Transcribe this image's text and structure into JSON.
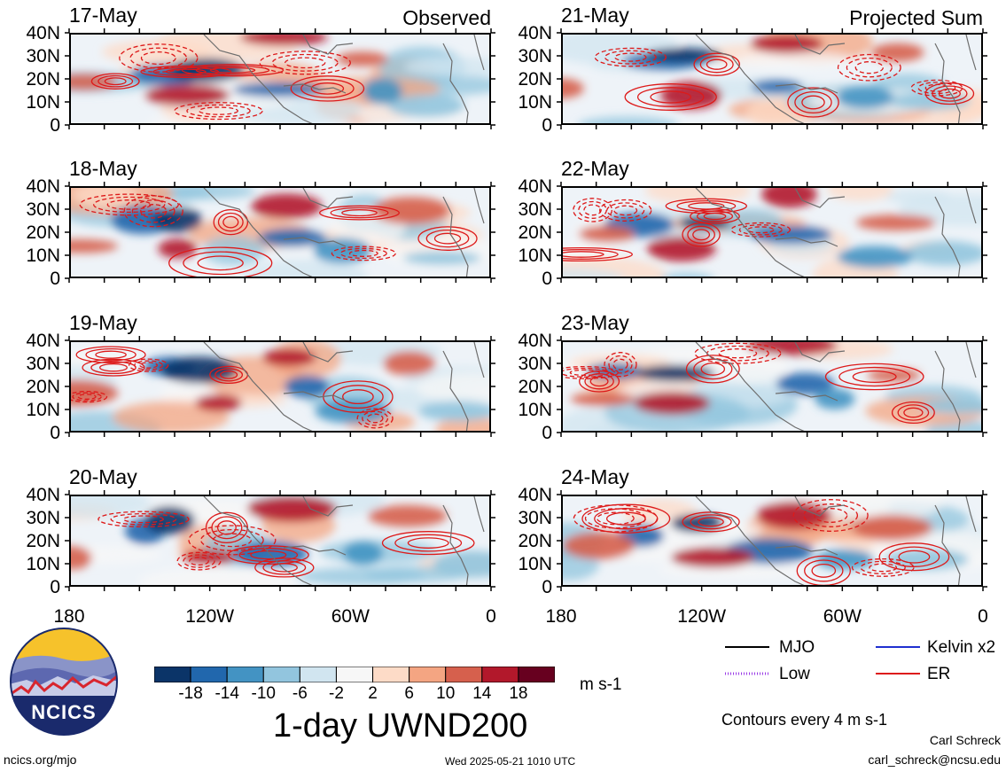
{
  "panels": [
    {
      "date": "17-May",
      "corner": "Observed",
      "seed": 1
    },
    {
      "date": "18-May",
      "corner": "",
      "seed": 2
    },
    {
      "date": "19-May",
      "corner": "",
      "seed": 3
    },
    {
      "date": "20-May",
      "corner": "",
      "seed": 4
    },
    {
      "date": "21-May",
      "corner": "Projected Sum",
      "seed": 5
    },
    {
      "date": "22-May",
      "corner": "",
      "seed": 6
    },
    {
      "date": "23-May",
      "corner": "",
      "seed": 7
    },
    {
      "date": "24-May",
      "corner": "",
      "seed": 8
    }
  ],
  "lat_labels": [
    "40N",
    "30N",
    "20N",
    "10N",
    "0"
  ],
  "lon_labels": [
    "180",
    "120W",
    "60W",
    "0"
  ],
  "colorbar": {
    "colors": [
      "#0b3468",
      "#2167ad",
      "#4393c3",
      "#92c5de",
      "#d1e5f0",
      "#f7f7f7",
      "#fddbc7",
      "#f4a582",
      "#d6604d",
      "#b2182b",
      "#67001f"
    ],
    "ticks": [
      "-18",
      "-14",
      "-10",
      "-6",
      "-2",
      "2",
      "6",
      "10",
      "14",
      "18"
    ],
    "units": "m s-1",
    "title": "1-day UWND200"
  },
  "legend": {
    "items": [
      {
        "label": "MJO",
        "color": "#000000",
        "style": "solid"
      },
      {
        "label": "Kelvin x2",
        "color": "#1f2fd0",
        "style": "solid"
      },
      {
        "label": "Low",
        "color": "#9a3be6",
        "style": "dotted"
      },
      {
        "label": "ER",
        "color": "#dd1a1a",
        "style": "solid"
      }
    ],
    "contour_note": "Contours every 4 m s-1"
  },
  "logo": {
    "text": "NCICS"
  },
  "footer": {
    "url": "ncics.org/mjo",
    "timestamp": "Wed 2025-05-21 1010 UTC",
    "author": "Carl Schreck",
    "email": "carl_schreck@ncsu.edu"
  }
}
